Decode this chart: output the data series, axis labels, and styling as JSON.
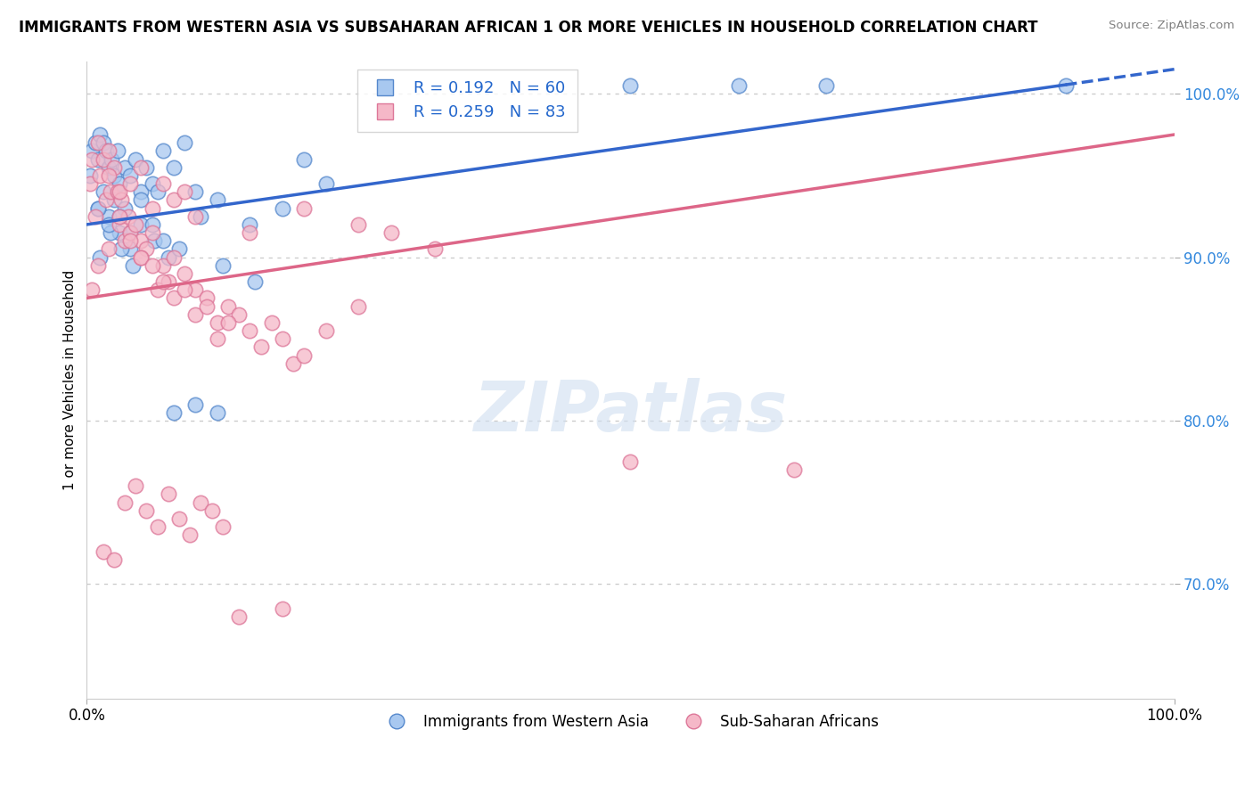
{
  "title": "IMMIGRANTS FROM WESTERN ASIA VS SUBSAHARAN AFRICAN 1 OR MORE VEHICLES IN HOUSEHOLD CORRELATION CHART",
  "source": "Source: ZipAtlas.com",
  "ylabel": "1 or more Vehicles in Household",
  "xmin": 0.0,
  "xmax": 100.0,
  "ymin": 63.0,
  "ymax": 102.0,
  "blue_R": 0.192,
  "blue_N": 60,
  "pink_R": 0.259,
  "pink_N": 83,
  "blue_color": "#a8c8f0",
  "pink_color": "#f5b8c8",
  "blue_edge_color": "#5588cc",
  "pink_edge_color": "#dd7799",
  "blue_line_color": "#3366cc",
  "pink_line_color": "#dd6688",
  "legend_blue_label": "Immigrants from Western Asia",
  "legend_pink_label": "Sub-Saharan Africans",
  "blue_x": [
    0.5,
    0.8,
    1.0,
    1.2,
    1.5,
    1.8,
    2.0,
    2.3,
    2.5,
    2.8,
    3.0,
    3.5,
    4.0,
    4.5,
    5.0,
    5.5,
    6.0,
    7.0,
    8.0,
    9.0,
    10.0,
    12.0,
    15.0,
    18.0,
    20.0,
    22.0,
    0.3,
    1.0,
    1.5,
    2.0,
    2.5,
    3.0,
    3.5,
    4.0,
    5.0,
    6.5,
    7.5,
    10.5,
    1.2,
    2.2,
    3.2,
    4.2,
    6.2,
    8.5,
    12.5,
    15.5,
    50.0,
    60.0,
    68.0,
    90.0,
    1.0,
    2.0,
    3.0,
    4.0,
    5.0,
    6.0,
    7.0,
    8.0,
    10.0,
    12.0
  ],
  "blue_y": [
    96.5,
    97.0,
    96.0,
    97.5,
    97.0,
    96.5,
    95.5,
    96.0,
    95.0,
    96.5,
    94.5,
    95.5,
    95.0,
    96.0,
    94.0,
    95.5,
    94.5,
    96.5,
    95.5,
    97.0,
    94.0,
    93.5,
    92.0,
    93.0,
    96.0,
    94.5,
    95.0,
    93.0,
    94.0,
    92.5,
    93.5,
    91.5,
    93.0,
    90.5,
    92.0,
    94.0,
    90.0,
    92.5,
    90.0,
    91.5,
    90.5,
    89.5,
    91.0,
    90.5,
    89.5,
    88.5,
    100.5,
    100.5,
    100.5,
    100.5,
    93.0,
    92.0,
    92.5,
    91.5,
    93.5,
    92.0,
    91.0,
    80.5,
    81.0,
    80.5
  ],
  "pink_x": [
    0.3,
    0.5,
    0.8,
    1.0,
    1.2,
    1.5,
    1.8,
    2.0,
    2.2,
    2.5,
    2.8,
    3.0,
    3.2,
    3.5,
    3.8,
    4.0,
    4.5,
    5.0,
    5.5,
    6.0,
    6.5,
    7.0,
    7.5,
    8.0,
    9.0,
    10.0,
    11.0,
    12.0,
    13.0,
    14.0,
    15.0,
    16.0,
    17.0,
    18.0,
    19.0,
    20.0,
    22.0,
    25.0,
    5.0,
    10.0,
    15.0,
    20.0,
    25.0,
    28.0,
    32.0,
    2.0,
    3.0,
    4.0,
    5.0,
    6.0,
    7.0,
    8.0,
    9.0,
    50.0,
    65.0,
    0.5,
    1.0,
    2.0,
    3.0,
    4.0,
    5.0,
    6.0,
    7.0,
    8.0,
    9.0,
    10.0,
    11.0,
    12.0,
    13.0,
    1.5,
    2.5,
    3.5,
    4.5,
    5.5,
    6.5,
    7.5,
    8.5,
    9.5,
    10.5,
    11.5,
    12.5,
    14.0,
    18.0
  ],
  "pink_y": [
    94.5,
    96.0,
    92.5,
    97.0,
    95.0,
    96.0,
    93.5,
    96.5,
    94.0,
    95.5,
    94.0,
    92.0,
    93.5,
    91.0,
    92.5,
    91.5,
    92.0,
    91.0,
    90.5,
    91.5,
    88.0,
    89.5,
    88.5,
    90.0,
    89.0,
    88.0,
    87.5,
    86.0,
    87.0,
    86.5,
    85.5,
    84.5,
    86.0,
    85.0,
    83.5,
    84.0,
    85.5,
    87.0,
    90.0,
    92.5,
    91.5,
    93.0,
    92.0,
    91.5,
    90.5,
    95.0,
    94.0,
    94.5,
    95.5,
    93.0,
    94.5,
    93.5,
    94.0,
    77.5,
    77.0,
    88.0,
    89.5,
    90.5,
    92.5,
    91.0,
    90.0,
    89.5,
    88.5,
    87.5,
    88.0,
    86.5,
    87.0,
    85.0,
    86.0,
    72.0,
    71.5,
    75.0,
    76.0,
    74.5,
    73.5,
    75.5,
    74.0,
    73.0,
    75.0,
    74.5,
    73.5,
    68.0,
    68.5
  ]
}
